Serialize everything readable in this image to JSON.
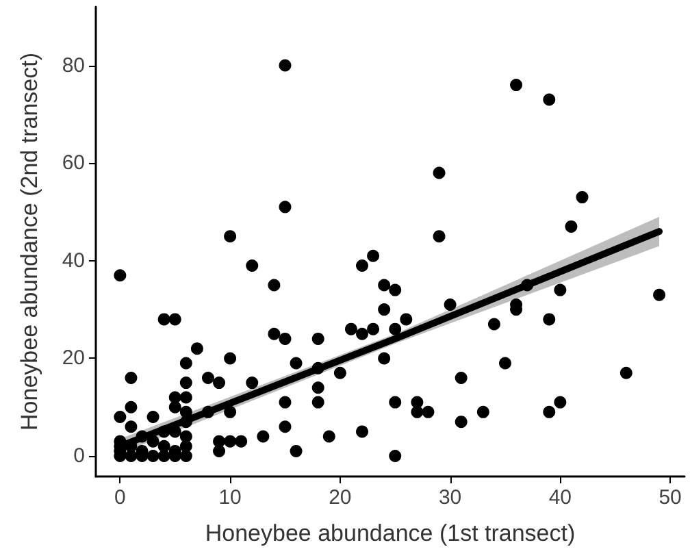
{
  "chart_data": {
    "type": "scatter",
    "xlabel": "Honeybee abundance (1st transect)",
    "ylabel": "Honeybee abundance (2nd transect)",
    "xlim": [
      -2.2,
      51.3
    ],
    "ylim": [
      -4.2,
      92
    ],
    "xticks": [
      0,
      10,
      20,
      30,
      40,
      50
    ],
    "yticks": [
      0,
      20,
      40,
      60,
      80
    ],
    "grid": false,
    "marker": "circle",
    "series": [
      {
        "color": "#000000",
        "x": [
          0,
          0,
          0,
          0,
          0,
          0,
          1,
          1,
          1,
          1,
          1,
          2,
          2,
          2,
          3,
          3,
          3,
          4,
          4,
          4,
          4,
          5,
          5,
          5,
          5,
          5,
          5,
          6,
          6,
          6,
          6,
          6,
          6,
          6,
          6,
          7,
          8,
          8,
          9,
          9,
          9,
          10,
          10,
          10,
          10,
          11,
          12,
          12,
          13,
          14,
          14,
          15,
          15,
          15,
          15,
          15,
          16,
          16,
          18,
          18,
          18,
          18,
          19,
          20,
          21,
          22,
          22,
          22,
          23,
          23,
          24,
          24,
          24,
          25,
          25,
          25,
          25,
          26,
          27,
          27,
          28,
          29,
          29,
          30,
          31,
          31,
          33,
          34,
          35,
          36,
          36,
          36,
          37,
          39,
          39,
          39,
          40,
          40,
          41,
          42,
          46,
          49
        ],
        "values": [
          37,
          8,
          3,
          1,
          0,
          2,
          16,
          10,
          6,
          2,
          0,
          4,
          1,
          0,
          8,
          3,
          0,
          28,
          5,
          2,
          0,
          28,
          12,
          10,
          5,
          1,
          0,
          19,
          15,
          12,
          9,
          7,
          4,
          2,
          0,
          22,
          9,
          16,
          15,
          3,
          1,
          45,
          20,
          9,
          3,
          3,
          39,
          15,
          4,
          35,
          25,
          80,
          51,
          24,
          11,
          6,
          19,
          1,
          24,
          18,
          14,
          11,
          4,
          17,
          26,
          39,
          25,
          5,
          41,
          26,
          35,
          30,
          20,
          0,
          34,
          26,
          11,
          28,
          9,
          11,
          9,
          58,
          45,
          31,
          16,
          7,
          9,
          27,
          19,
          76,
          31,
          30,
          35,
          73,
          28,
          9,
          34,
          11,
          47,
          53,
          17,
          33
        ]
      },
      {
        "type": "line",
        "color": "#000000",
        "x": [
          0,
          25,
          49
        ],
        "values": [
          2,
          24,
          46
        ],
        "lower": [
          0.5,
          23,
          43
        ],
        "upper": [
          3.5,
          25,
          49
        ],
        "marker": "none"
      }
    ]
  }
}
